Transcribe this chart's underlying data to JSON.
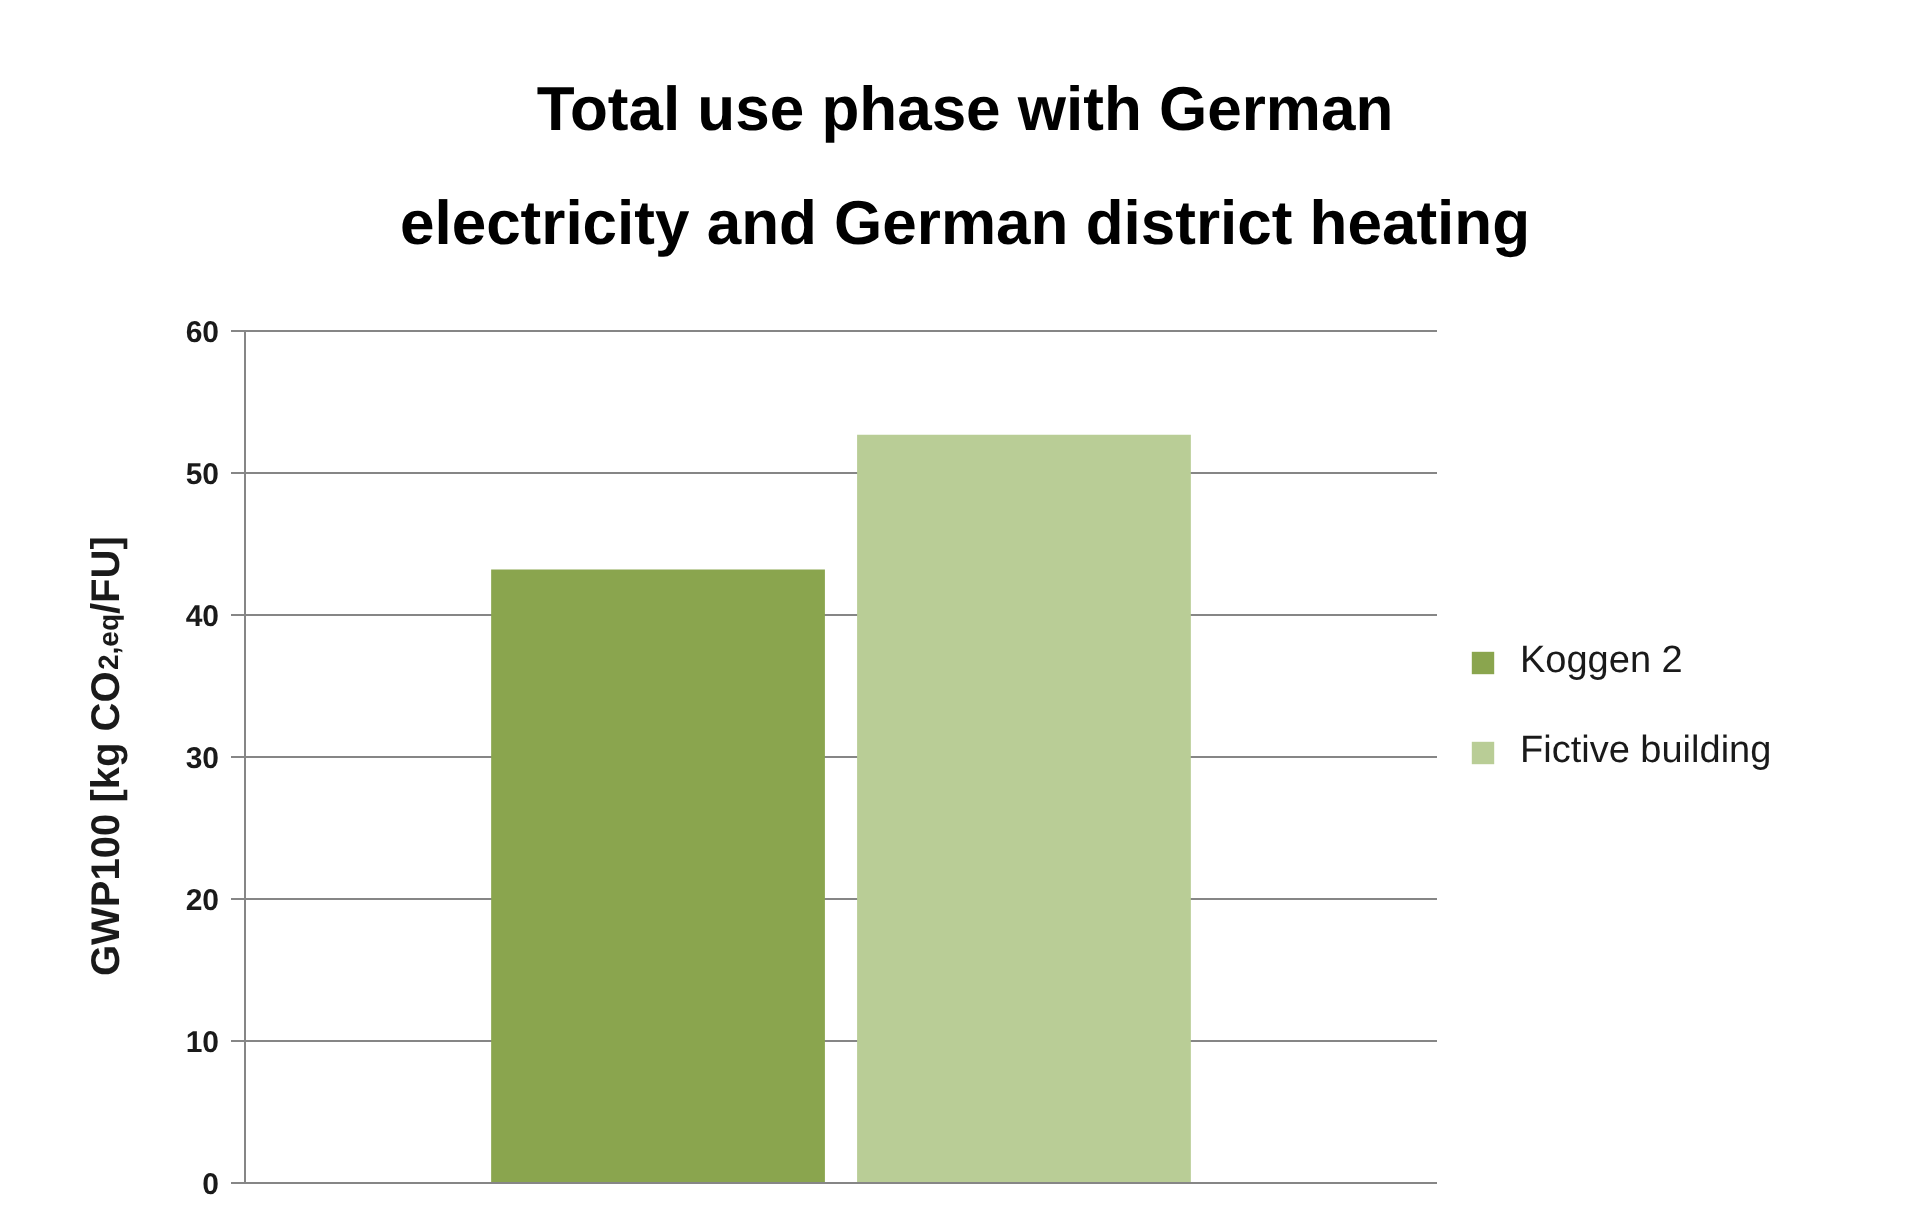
{
  "chart_data": {
    "type": "bar",
    "title": "Total use phase with German\nelectricity and German district heating",
    "ylabel": "GWP100 [kg CO$_{2,eq}$/FU]",
    "categories": [
      null
    ],
    "series": [
      {
        "name": "Koggen 2",
        "color": "#8aa54e",
        "values": [
          43.2
        ]
      },
      {
        "name": "Fictive building",
        "color": "#b9cd96",
        "values": [
          52.7
        ]
      }
    ],
    "ylim": [
      0,
      60
    ],
    "yticks": [
      0,
      10,
      20,
      30,
      40,
      50,
      60
    ],
    "grid": "y",
    "legend": "right"
  }
}
